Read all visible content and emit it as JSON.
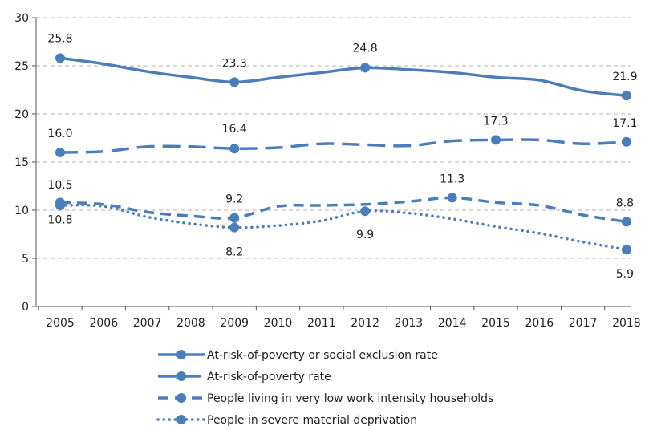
{
  "chart_data": {
    "type": "line",
    "title": "",
    "xlabel": "",
    "ylabel": "",
    "categories": [
      "2005",
      "2006",
      "2007",
      "2008",
      "2009",
      "2010",
      "2011",
      "2012",
      "2013",
      "2014",
      "2015",
      "2016",
      "2017",
      "2018"
    ],
    "ylim": [
      0,
      30
    ],
    "yticks": [
      0,
      5,
      10,
      15,
      20,
      25,
      30
    ],
    "grid": "horizontal dashed",
    "legend_position": "bottom",
    "color": "#4a7ebb",
    "series": [
      {
        "name": "At-risk-of-poverty or social exclusion rate",
        "style": "solid",
        "values": [
          25.8,
          25.2,
          24.4,
          23.8,
          23.3,
          23.8,
          24.3,
          24.8,
          24.6,
          24.3,
          23.8,
          23.5,
          22.4,
          21.9
        ],
        "labels": [
          "25.8",
          "",
          "",
          "",
          "23.3",
          "",
          "",
          "24.8",
          "",
          "",
          "",
          "",
          "",
          "21.9"
        ]
      },
      {
        "name": "At-risk-of-poverty rate",
        "style": "long-dash",
        "values": [
          16.0,
          16.1,
          16.6,
          16.6,
          16.4,
          16.5,
          16.9,
          16.8,
          16.7,
          17.2,
          17.3,
          17.3,
          16.9,
          17.1
        ],
        "labels": [
          "16.0",
          "",
          "",
          "",
          "16.4",
          "",
          "",
          "",
          "",
          "",
          "17.3",
          "",
          "",
          "17.1"
        ]
      },
      {
        "name": "People living in very low work intensity households",
        "style": "dash",
        "values": [
          10.8,
          10.6,
          9.8,
          9.4,
          9.2,
          10.4,
          10.5,
          10.6,
          10.9,
          11.3,
          10.8,
          10.5,
          9.5,
          8.8
        ],
        "labels": [
          "10.8",
          "",
          "",
          "",
          "9.2",
          "",
          "",
          "",
          "",
          "11.3",
          "",
          "",
          "",
          "8.8"
        ]
      },
      {
        "name": "People in severe material deprivation",
        "style": "dot",
        "values": [
          10.5,
          10.4,
          9.3,
          8.6,
          8.2,
          8.4,
          8.9,
          9.9,
          9.7,
          9.1,
          8.3,
          7.6,
          6.7,
          5.9
        ],
        "labels": [
          "10.5",
          "",
          "",
          "",
          "8.2",
          "",
          "",
          "9.9",
          "",
          "",
          "",
          "",
          "",
          "5.9"
        ]
      }
    ]
  }
}
